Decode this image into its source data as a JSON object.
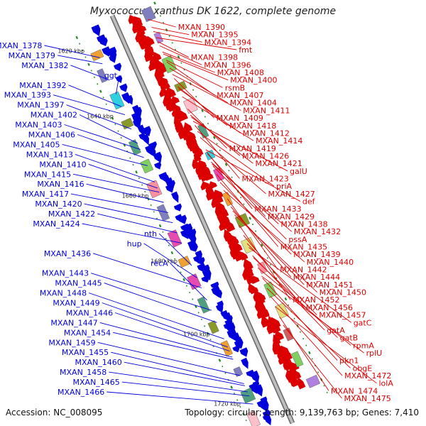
{
  "title": "Myxococcus xanthus DK 1622, complete genome",
  "footer": {
    "accession": "Accession: NC_008095",
    "stats": "Topology: circular; Length: 9,139,763 bp; Genes: 7,410"
  },
  "colors": {
    "plus_strand": "#0000dd",
    "minus_strand": "#dd0000",
    "backbone": "#9a9a9a",
    "tick": "#228822"
  },
  "scale": [
    {
      "label": "1620 kbp",
      "pos": 0.05
    },
    {
      "label": "1640 kbp",
      "pos": 0.21
    },
    {
      "label": "1660 kbp",
      "pos": 0.405
    },
    {
      "label": "1680 kbp",
      "pos": 0.565
    },
    {
      "label": "1700 kbp",
      "pos": 0.745
    },
    {
      "label": "1720 kbp",
      "pos": 0.915
    }
  ],
  "left_labels": [
    {
      "text": "MXAN_1378",
      "t": 0.075
    },
    {
      "text": "MXAN_1379",
      "t": 0.09
    },
    {
      "text": "MXAN_1382",
      "t": 0.13
    },
    {
      "text": "ggt",
      "t": 0.165
    },
    {
      "text": "MXAN_1392",
      "t": 0.195
    },
    {
      "text": "MXAN_1393",
      "t": 0.215
    },
    {
      "text": "MXAN_1397",
      "t": 0.25
    },
    {
      "text": "MXAN_1402",
      "t": 0.285
    },
    {
      "text": "MXAN_1403",
      "t": 0.3
    },
    {
      "text": "MXAN_1406",
      "t": 0.32
    },
    {
      "text": "MXAN_1405",
      "t": 0.34
    },
    {
      "text": "MXAN_1413",
      "t": 0.38
    },
    {
      "text": "MXAN_1410",
      "t": 0.395
    },
    {
      "text": "MXAN_1415",
      "t": 0.405
    },
    {
      "text": "MXAN_1416",
      "t": 0.43
    },
    {
      "text": "MXAN_1417",
      "t": 0.455
    },
    {
      "text": "MXAN_1420",
      "t": 0.48
    },
    {
      "text": "MXAN_1422",
      "t": 0.505
    },
    {
      "text": "MXAN_1424",
      "t": 0.53
    },
    {
      "text": "nth",
      "t": 0.585
    },
    {
      "text": "hup",
      "t": 0.615
    },
    {
      "text": "MXAN_1436",
      "t": 0.64
    },
    {
      "text": "recA",
      "t": 0.67
    },
    {
      "text": "MXAN_1443",
      "t": 0.695
    },
    {
      "text": "MXAN_1445",
      "t": 0.725
    },
    {
      "text": "MXAN_1448",
      "t": 0.765
    },
    {
      "text": "MXAN_1449",
      "t": 0.785
    },
    {
      "text": "MXAN_1446",
      "t": 0.795
    },
    {
      "text": "MXAN_1447",
      "t": 0.81
    },
    {
      "text": "MXAN_1454",
      "t": 0.815
    },
    {
      "text": "MXAN_1459",
      "t": 0.855
    },
    {
      "text": "MXAN_1455",
      "t": 0.875
    },
    {
      "text": "MXAN_1460",
      "t": 0.88
    },
    {
      "text": "MXAN_1458",
      "t": 0.895
    },
    {
      "text": "MXAN_1465",
      "t": 0.905
    },
    {
      "text": "MXAN_1466",
      "t": 0.925
    }
  ],
  "right_labels": [
    {
      "text": "MXAN_1390",
      "t": 0.04
    },
    {
      "text": "MXAN_1395",
      "t": 0.06
    },
    {
      "text": "MXAN_1394",
      "t": 0.07
    },
    {
      "text": "fmt",
      "t": 0.085
    },
    {
      "text": "MXAN_1398",
      "t": 0.095
    },
    {
      "text": "MXAN_1396",
      "t": 0.105
    },
    {
      "text": "MXAN_1408",
      "t": 0.12
    },
    {
      "text": "MXAN_1400",
      "t": 0.125
    },
    {
      "text": "rsmB",
      "t": 0.14
    },
    {
      "text": "MXAN_1407",
      "t": 0.145
    },
    {
      "text": "MXAN_1404",
      "t": 0.16
    },
    {
      "text": "MXAN_1411",
      "t": 0.175
    },
    {
      "text": "MXAN_1409",
      "t": 0.185
    },
    {
      "text": "MXAN_1418",
      "t": 0.205
    },
    {
      "text": "MXAN_1412",
      "t": 0.21
    },
    {
      "text": "MXAN_1414",
      "t": 0.23
    },
    {
      "text": "MXAN_1419",
      "t": 0.26
    },
    {
      "text": "MXAN_1426",
      "t": 0.275
    },
    {
      "text": "MXAN_1421",
      "t": 0.28
    },
    {
      "text": "galU",
      "t": 0.29
    },
    {
      "text": "MXAN_1423",
      "t": 0.3
    },
    {
      "text": "priA",
      "t": 0.315
    },
    {
      "text": "MXAN_1427",
      "t": 0.33
    },
    {
      "text": "def",
      "t": 0.36
    },
    {
      "text": "MXAN_1433",
      "t": 0.365
    },
    {
      "text": "MXAN_1429",
      "t": 0.37
    },
    {
      "text": "MXAN_1438",
      "t": 0.39
    },
    {
      "text": "MXAN_1432",
      "t": 0.395
    },
    {
      "text": "pssA",
      "t": 0.4
    },
    {
      "text": "MXAN_1435",
      "t": 0.42
    },
    {
      "text": "MXAN_1439",
      "t": 0.44
    },
    {
      "text": "MXAN_1440",
      "t": 0.46
    },
    {
      "text": "MXAN_1442",
      "t": 0.48
    },
    {
      "text": "MXAN_1444",
      "t": 0.5
    },
    {
      "text": "MXAN_1451",
      "t": 0.51
    },
    {
      "text": "MXAN_1450",
      "t": 0.52
    },
    {
      "text": "MXAN_1452",
      "t": 0.545
    },
    {
      "text": "MXAN_1456",
      "t": 0.57
    },
    {
      "text": "MXAN_1457",
      "t": 0.59
    },
    {
      "text": "gatC",
      "t": 0.6
    },
    {
      "text": "gatA",
      "t": 0.62
    },
    {
      "text": "gatB",
      "t": 0.625
    },
    {
      "text": "rpmA",
      "t": 0.65
    },
    {
      "text": "rplU",
      "t": 0.67
    },
    {
      "text": "pkn1",
      "t": 0.675
    },
    {
      "text": "obgE",
      "t": 0.7
    },
    {
      "text": "MXAN_1472",
      "t": 0.72
    },
    {
      "text": "lolA",
      "t": 0.745
    },
    {
      "text": "MXAN_1474",
      "t": 0.77
    },
    {
      "text": "MXAN_1475",
      "t": 0.79
    }
  ]
}
